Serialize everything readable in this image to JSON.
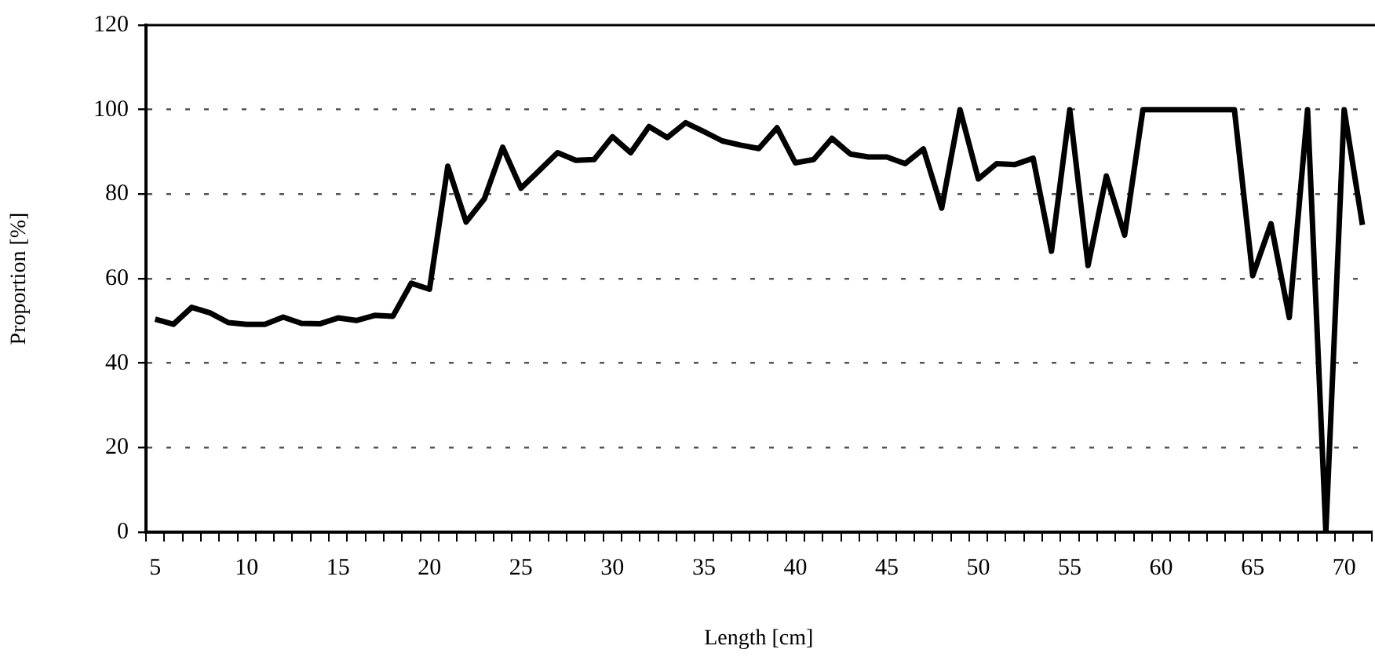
{
  "chart_data": {
    "type": "line",
    "xlabel": "Length [cm]",
    "ylabel": "Proportion [%]",
    "categories": [
      "5",
      null,
      null,
      null,
      null,
      "10",
      null,
      null,
      null,
      null,
      "15",
      null,
      null,
      null,
      null,
      "20",
      null,
      null,
      null,
      null,
      "25",
      null,
      null,
      null,
      null,
      "30",
      null,
      null,
      null,
      null,
      "35",
      null,
      null,
      null,
      null,
      "40",
      null,
      null,
      null,
      null,
      "45",
      null,
      null,
      null,
      null,
      "50",
      null,
      null,
      null,
      null,
      "55",
      null,
      null,
      null,
      null,
      "60",
      null,
      null,
      null,
      null,
      "65",
      null,
      null,
      null,
      null,
      "70",
      null
    ],
    "series": [
      {
        "color": "#000000",
        "values": [
          50.4,
          49.2,
          53.2,
          51.9,
          49.6,
          49.2,
          49.2,
          50.9,
          49.4,
          49.3,
          50.7,
          50.1,
          51.3,
          51.1,
          58.9,
          57.5,
          86.6,
          73.4,
          78.9,
          91.1,
          81.4,
          85.6,
          89.8,
          88.0,
          88.2,
          93.6,
          89.8,
          96.0,
          93.4,
          96.9,
          94.8,
          92.6,
          91.6,
          90.8,
          95.7,
          87.4,
          88.2,
          93.2,
          89.5,
          88.8,
          88.8,
          87.2,
          90.7,
          76.7,
          100,
          83.6,
          87.2,
          87.0,
          88.5,
          66.5,
          100,
          63.1,
          84.3,
          70.3,
          100,
          100,
          100,
          100,
          100,
          100,
          60.7,
          73.0,
          50.8,
          100,
          0,
          100,
          72.7
        ]
      }
    ],
    "ylim": [
      0,
      120
    ],
    "yticks": [
      0,
      20,
      40,
      60,
      80,
      100,
      120
    ],
    "grid": "y",
    "legend": false,
    "marker": "none",
    "line_style": "solid"
  }
}
